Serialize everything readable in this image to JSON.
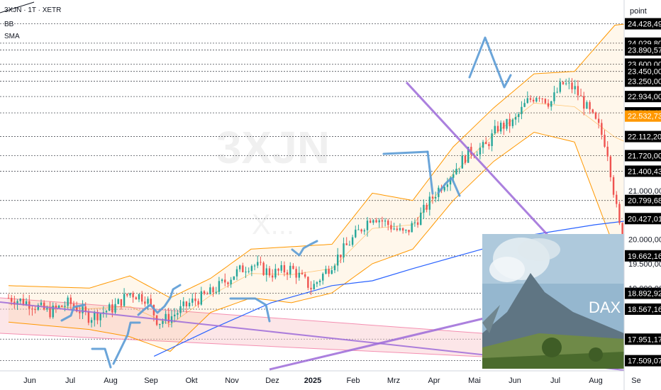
{
  "header": {
    "symbol": "3XJN · 1T · XETR",
    "indicator_1": "BB",
    "indicator_2": "SMA"
  },
  "axis_unit": "point",
  "watermark": {
    "symbol": "3XJN",
    "exchange": "X..."
  },
  "inset": {
    "caption": "DAX"
  },
  "colors": {
    "candle_up": "#26a69a",
    "candle_down": "#ef5350",
    "bollinger": "#ff9800",
    "sma": "#2962ff",
    "trendline": "#9c6ad8",
    "annotation": "#5b9bd5",
    "current_price": "#ff9800",
    "price_badge": "#000000"
  },
  "chart_data": {
    "type": "candlestick",
    "y_range": [
      17300,
      24800
    ],
    "x_labels": [
      "Jun",
      "Jul",
      "Aug",
      "Sep",
      "Okt",
      "Nov",
      "Dez",
      "2025",
      "Feb",
      "Mrz",
      "Apr",
      "Mai",
      "Jun",
      "Jul",
      "Aug",
      "Se"
    ],
    "price_levels": [
      {
        "label": "24.428,49",
        "value": 24428.49
      },
      {
        "label": "24.029,80",
        "value": 24029.8
      },
      {
        "label": "23.890,57",
        "value": 23890.57
      },
      {
        "label": "23.600,00",
        "value": 23600
      },
      {
        "label": "23.450,00",
        "value": 23450
      },
      {
        "label": "23.250,00",
        "value": 23250
      },
      {
        "label": "22.934,00",
        "value": 22934
      },
      {
        "label": "22.599,48",
        "value": 22599.48
      },
      {
        "label": "22.112,20",
        "value": 22112.2
      },
      {
        "label": "21.720,00",
        "value": 21720
      },
      {
        "label": "21.400,43",
        "value": 21400.43
      },
      {
        "label": "20.799,68",
        "value": 20799.68
      },
      {
        "label": "20.427,01",
        "value": 20427.01
      },
      {
        "label": "19.662,16",
        "value": 19662.16
      },
      {
        "label": "18.892,92",
        "value": 18892.92
      },
      {
        "label": "18.567,16",
        "value": 18567.16
      },
      {
        "label": "17.951,17",
        "value": 17951.17
      },
      {
        "label": "17.509,07",
        "value": 17509.07
      }
    ],
    "axis_ticks": [
      {
        "label": "21.000,00",
        "value": 21000
      },
      {
        "label": "20.000,00",
        "value": 20000
      },
      {
        "label": "19.500,00",
        "value": 19500
      },
      {
        "label": "19.000,00",
        "value": 19000
      }
    ],
    "current_price": {
      "label": "22.532,73",
      "value": 22532.73
    },
    "close_path": [
      [
        0,
        18800
      ],
      [
        0.5,
        18700
      ],
      [
        1.0,
        18500
      ],
      [
        1.5,
        18700
      ],
      [
        2.0,
        18400
      ],
      [
        2.6,
        18600
      ],
      [
        3.0,
        18900
      ],
      [
        3.4,
        18800
      ],
      [
        3.7,
        18300
      ],
      [
        4.0,
        18400
      ],
      [
        4.5,
        18700
      ],
      [
        5.0,
        18900
      ],
      [
        5.6,
        19300
      ],
      [
        6.0,
        19500
      ],
      [
        6.5,
        19300
      ],
      [
        7.0,
        19400
      ],
      [
        7.5,
        19000
      ],
      [
        8.0,
        19500
      ],
      [
        8.6,
        20100
      ],
      [
        9.0,
        20500
      ],
      [
        9.4,
        20300
      ],
      [
        9.8,
        20100
      ],
      [
        10.2,
        20500
      ],
      [
        10.6,
        21000
      ],
      [
        11.0,
        21400
      ],
      [
        11.4,
        21800
      ],
      [
        11.8,
        21900
      ],
      [
        12.1,
        22300
      ],
      [
        12.5,
        22400
      ],
      [
        12.8,
        22800
      ],
      [
        13.1,
        23000
      ],
      [
        13.4,
        22800
      ],
      [
        13.7,
        23200
      ],
      [
        14.0,
        23100
      ],
      [
        14.3,
        22700
      ],
      [
        14.6,
        22300
      ],
      [
        14.8,
        21900
      ],
      [
        15.1,
        20300
      ],
      [
        15.3,
        19800
      ],
      [
        15.6,
        20600
      ],
      [
        15.9,
        21200
      ],
      [
        16.2,
        21600
      ],
      [
        16.5,
        21950
      ],
      [
        16.8,
        22530
      ]
    ],
    "upper_band_path": [
      [
        0,
        19050
      ],
      [
        2,
        19000
      ],
      [
        3,
        19250
      ],
      [
        4,
        18800
      ],
      [
        5,
        19200
      ],
      [
        6,
        19800
      ],
      [
        7,
        19850
      ],
      [
        8,
        19900
      ],
      [
        9,
        20950
      ],
      [
        10,
        20800
      ],
      [
        11,
        21900
      ],
      [
        12,
        22700
      ],
      [
        13,
        23400
      ],
      [
        14,
        23450
      ],
      [
        15,
        24400
      ],
      [
        15.6,
        24450
      ],
      [
        16,
        23900
      ],
      [
        16.6,
        23100
      ]
    ],
    "lower_band_path": [
      [
        0,
        18300
      ],
      [
        2,
        18150
      ],
      [
        3,
        18000
      ],
      [
        4,
        17700
      ],
      [
        5,
        18500
      ],
      [
        6,
        18800
      ],
      [
        7,
        18700
      ],
      [
        8,
        18900
      ],
      [
        9,
        19500
      ],
      [
        10,
        19800
      ],
      [
        11,
        20800
      ],
      [
        12,
        21600
      ],
      [
        13,
        22200
      ],
      [
        14,
        22000
      ],
      [
        15,
        19800
      ],
      [
        15.6,
        19300
      ],
      [
        16,
        19600
      ],
      [
        16.6,
        19700
      ]
    ],
    "sma_path": [
      [
        3.6,
        17600
      ],
      [
        5,
        18150
      ],
      [
        6.5,
        18700
      ],
      [
        8,
        19050
      ],
      [
        9,
        19150
      ],
      [
        10,
        19400
      ],
      [
        11.5,
        19750
      ],
      [
        13,
        20100
      ],
      [
        14.5,
        20300
      ],
      [
        15.5,
        20400
      ],
      [
        16.6,
        20550
      ]
    ]
  }
}
